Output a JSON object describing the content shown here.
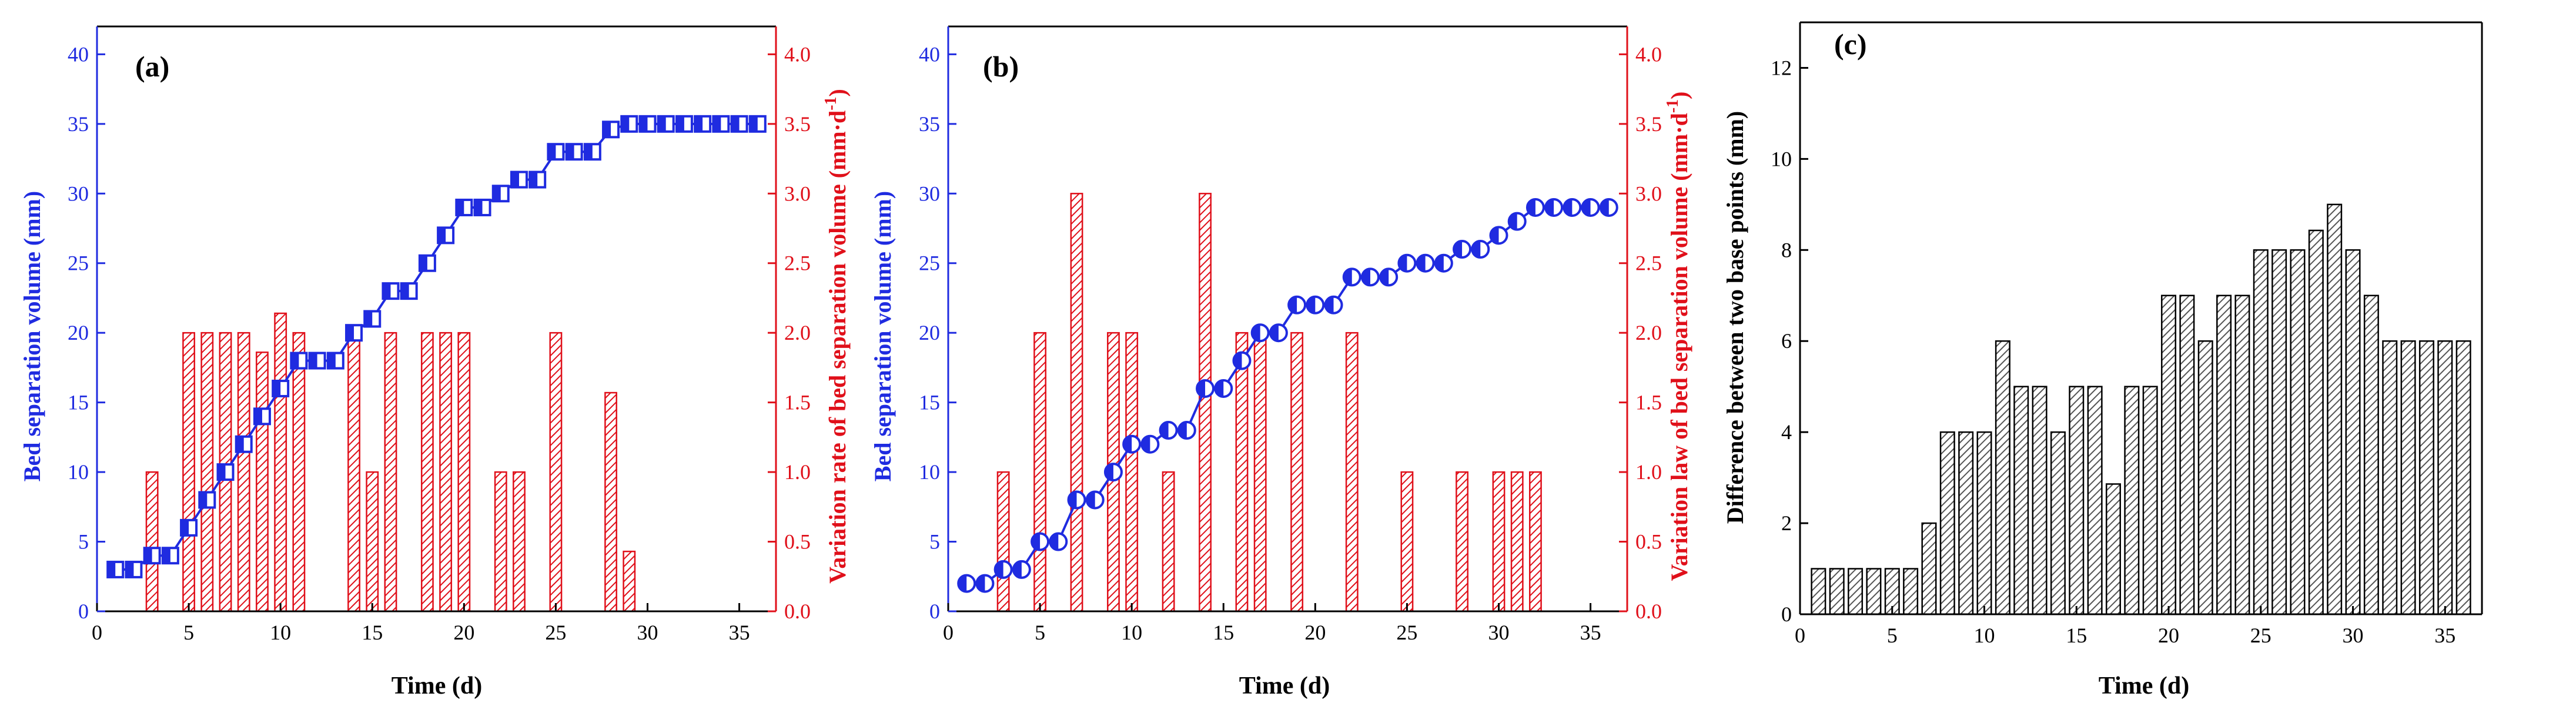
{
  "figure": {
    "panels": [
      "a",
      "b",
      "c"
    ]
  },
  "chart_data": [
    {
      "id": "a",
      "type": "bar+line",
      "panel_label": "(a)",
      "xlabel": "Time (d)",
      "xlim": [
        0,
        37
      ],
      "xticks": [
        0,
        5,
        10,
        15,
        20,
        25,
        30,
        35
      ],
      "ylabel_left": "Bed separation volume (mm)",
      "ylim_left": [
        0,
        42
      ],
      "yticks_left": [
        0,
        5,
        10,
        15,
        20,
        25,
        30,
        35,
        40
      ],
      "ylabel_right_main": "Variation rate of bed separation volume (mm·d",
      "ylabel_right_sup": "-1",
      "ylabel_right_close": ")",
      "ylim_right": [
        0,
        4.2
      ],
      "yticks_right": [
        "0.0",
        "0.5",
        "1.0",
        "1.5",
        "2.0",
        "2.5",
        "3.0",
        "3.5",
        "4.0"
      ],
      "line_marker": "half-filled-square",
      "line_color": "#1f2be0",
      "bar_color": "#e0101a",
      "line_series": {
        "name": "Bed separation volume",
        "x": [
          1,
          2,
          3,
          4,
          5,
          6,
          7,
          8,
          9,
          10,
          11,
          12,
          13,
          14,
          15,
          16,
          17,
          18,
          19,
          20,
          21,
          22,
          23,
          24,
          25,
          26,
          27,
          28,
          29,
          30,
          31,
          32,
          33,
          34,
          35,
          36
        ],
        "y": [
          3,
          3,
          4,
          4,
          6,
          8,
          10,
          12,
          14,
          16,
          18,
          18,
          18,
          20,
          21,
          23,
          23,
          25,
          27,
          29,
          29,
          30,
          31,
          31,
          33,
          33,
          33,
          34.6,
          35,
          35,
          35,
          35,
          35,
          35,
          35,
          35
        ]
      },
      "bar_series": {
        "name": "Variation rate",
        "x": [
          3,
          5,
          6,
          7,
          8,
          9,
          10,
          11,
          14,
          15,
          16,
          18,
          19,
          20,
          22,
          23,
          25,
          28,
          29
        ],
        "y": [
          1.0,
          2.0,
          2.0,
          2.0,
          2.0,
          1.86,
          2.14,
          2.0,
          2.0,
          1.0,
          2.0,
          2.0,
          2.0,
          2.0,
          1.0,
          1.0,
          2.0,
          1.57,
          0.43
        ]
      }
    },
    {
      "id": "b",
      "type": "bar+line",
      "panel_label": "(b)",
      "xlabel": "Time (d)",
      "xlim": [
        0,
        37
      ],
      "xticks": [
        0,
        5,
        10,
        15,
        20,
        25,
        30,
        35
      ],
      "ylabel_left": "Bed separation volume (mm)",
      "ylim_left": [
        0,
        42
      ],
      "yticks_left": [
        0,
        5,
        10,
        15,
        20,
        25,
        30,
        35,
        40
      ],
      "ylabel_right_main": "Variation law of bed separation volume (mm·d",
      "ylabel_right_sup": "-1",
      "ylabel_right_close": ")",
      "ylim_right": [
        0,
        4.2
      ],
      "yticks_right": [
        "0.0",
        "0.5",
        "1.0",
        "1.5",
        "2.0",
        "2.5",
        "3.0",
        "3.5",
        "4.0"
      ],
      "line_marker": "half-filled-circle",
      "line_color": "#1f2be0",
      "bar_color": "#e0101a",
      "line_series": {
        "name": "Bed separation volume",
        "x": [
          1,
          2,
          3,
          4,
          5,
          6,
          7,
          8,
          9,
          10,
          11,
          12,
          13,
          14,
          15,
          16,
          17,
          18,
          19,
          20,
          21,
          22,
          23,
          24,
          25,
          26,
          27,
          28,
          29,
          30,
          31,
          32,
          33,
          34,
          35,
          36
        ],
        "y": [
          2,
          2,
          3,
          3,
          5,
          5,
          8,
          8,
          10,
          12,
          12,
          13,
          13,
          16,
          16,
          18,
          20,
          20,
          22,
          22,
          22,
          24,
          24,
          24,
          25,
          25,
          25,
          26,
          26,
          27,
          28,
          29,
          29,
          29,
          29,
          29
        ]
      },
      "bar_series": {
        "name": "Variation law",
        "x": [
          3,
          5,
          7,
          9,
          10,
          12,
          14,
          16,
          17,
          19,
          22,
          25,
          28,
          30,
          31,
          32
        ],
        "y": [
          1.0,
          2.0,
          3.0,
          2.0,
          2.0,
          1.0,
          3.0,
          2.0,
          2.0,
          2.0,
          2.0,
          1.0,
          1.0,
          1.0,
          1.0,
          1.0
        ]
      }
    },
    {
      "id": "c",
      "type": "bar",
      "panel_label": "(c)",
      "xlabel": "Time (d)",
      "ylabel": "Difference between two base points (mm)",
      "xlim": [
        0,
        37
      ],
      "xticks": [
        0,
        5,
        10,
        15,
        20,
        25,
        30,
        35
      ],
      "ylim": [
        0,
        13
      ],
      "yticks": [
        0,
        2,
        4,
        6,
        8,
        10,
        12
      ],
      "bar_color": "#8a8a8a",
      "series": [
        {
          "name": "Difference",
          "x": [
            1,
            2,
            3,
            4,
            5,
            6,
            7,
            8,
            9,
            10,
            11,
            12,
            13,
            14,
            15,
            16,
            17,
            18,
            19,
            20,
            21,
            22,
            23,
            24,
            25,
            26,
            27,
            28,
            29,
            30,
            31,
            32,
            33,
            34,
            35,
            36
          ],
          "values": [
            1,
            1,
            1,
            1,
            1,
            1,
            2,
            4,
            4,
            4,
            6,
            5,
            5,
            4,
            5,
            5,
            2.86,
            5,
            5,
            7,
            7,
            6,
            7,
            7,
            8,
            8,
            8,
            8.43,
            9,
            8,
            7,
            6,
            6,
            6,
            6,
            6
          ]
        }
      ]
    }
  ]
}
